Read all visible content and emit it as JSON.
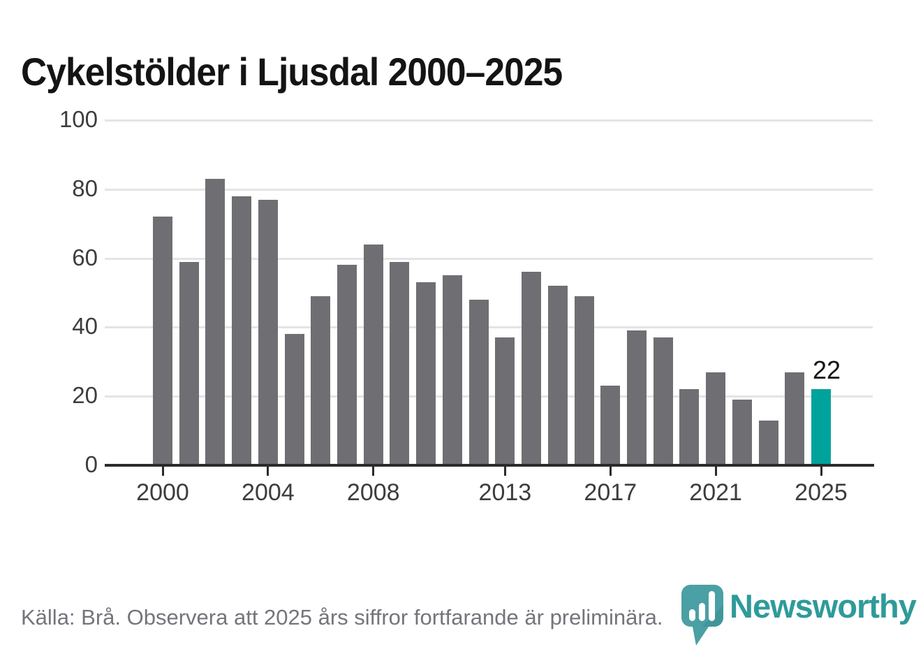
{
  "page": {
    "title": "Cykelstölder i Ljusdal 2000–2025",
    "footer": "Källa: Brå. Observera att 2025 års siffror fortfarande är preliminära.",
    "brand": {
      "name": "Newsworthy",
      "wordmark_color": "#2f9a9a",
      "pin_color": "#4aa0a4"
    }
  },
  "chart_data": {
    "type": "bar",
    "title": "Cykelstölder i Ljusdal 2000–2025",
    "categories": [
      "2000",
      "2001",
      "2002",
      "2003",
      "2004",
      "2005",
      "2006",
      "2007",
      "2008",
      "2009",
      "2010",
      "2011",
      "2012",
      "2013",
      "2014",
      "2015",
      "2016",
      "2017",
      "2018",
      "2019",
      "2020",
      "2021",
      "2022",
      "2023",
      "2024",
      "2025"
    ],
    "values": [
      72,
      59,
      83,
      78,
      77,
      38,
      49,
      58,
      64,
      59,
      53,
      55,
      48,
      37,
      56,
      52,
      49,
      23,
      39,
      37,
      22,
      27,
      19,
      13,
      27,
      22
    ],
    "bar_color": "#6e6e73",
    "highlight_index": 25,
    "highlight_color": "#00a29c",
    "highlight_value_label": "22",
    "ylim": [
      0,
      100
    ],
    "yticks": [
      0,
      20,
      40,
      60,
      80,
      100
    ],
    "xtick_labels": [
      "2000",
      "2004",
      "2008",
      "2013",
      "2017",
      "2021",
      "2025"
    ],
    "grid": "horizontal",
    "legend": "none",
    "note": "Källa: Brå. Observera att 2025 års siffror fortfarande är preliminära."
  }
}
